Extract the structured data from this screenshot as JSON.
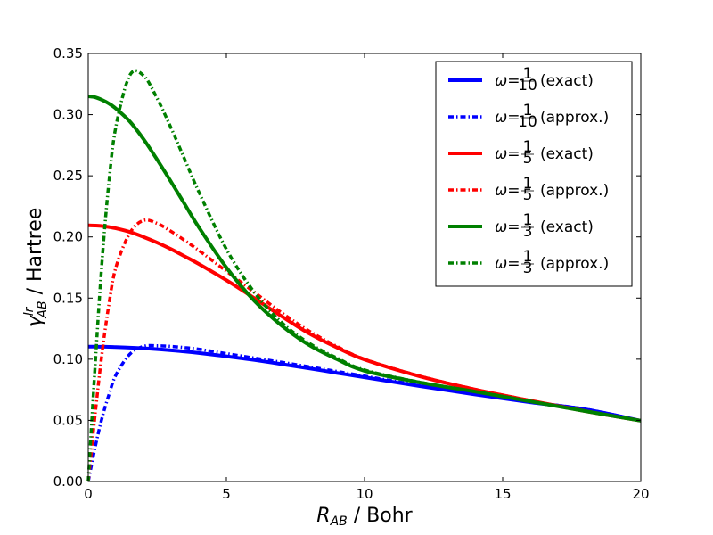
{
  "chart_data": {
    "type": "line",
    "title": "",
    "xlabel": "R_AB / Bohr",
    "ylabel": "γ^lr_AB / Hartree",
    "xlim": [
      0,
      20
    ],
    "ylim": [
      0,
      0.35
    ],
    "xticks": [
      0,
      5,
      10,
      15,
      20
    ],
    "xtick_labels": [
      "0",
      "5",
      "10",
      "15",
      "20"
    ],
    "yticks": [
      0,
      0.05,
      0.1,
      0.15,
      0.2,
      0.25,
      0.3,
      0.35
    ],
    "ytick_labels": [
      "0.00",
      "0.05",
      "0.10",
      "0.15",
      "0.20",
      "0.25",
      "0.30",
      "0.35"
    ],
    "grid": false,
    "legend_position": "top-right",
    "x": [
      0,
      0.25,
      0.5,
      0.75,
      1,
      1.5,
      2,
      2.5,
      3,
      3.5,
      4,
      5,
      6,
      7,
      8,
      9,
      10,
      12,
      14,
      16,
      18,
      20
    ],
    "series": [
      {
        "name": "ω=1/10 (exact)",
        "label_text": "(exact)",
        "omega": "1/10",
        "color": "#0000ff",
        "style": "solid",
        "values": [
          0.1103,
          0.1103,
          0.1102,
          0.1101,
          0.1099,
          0.1095,
          0.1089,
          0.1082,
          0.1073,
          0.1063,
          0.1051,
          0.1024,
          0.0994,
          0.096,
          0.0925,
          0.0888,
          0.0852,
          0.078,
          0.0712,
          0.0648,
          0.059,
          0.0497
        ]
      },
      {
        "name": "ω=1/10 (approx.)",
        "label_text": "(approx.)",
        "omega": "1/10",
        "color": "#0000ff",
        "style": "dashdot",
        "values": [
          0.0,
          0.028,
          0.052,
          0.071,
          0.087,
          0.104,
          0.1105,
          0.111,
          0.1105,
          0.1095,
          0.1082,
          0.1046,
          0.101,
          0.0975,
          0.0938,
          0.09,
          0.0862,
          0.0786,
          0.0716,
          0.065,
          0.0592,
          0.0497
        ]
      },
      {
        "name": "ω=1/5 (exact)",
        "label_text": "(exact)",
        "omega": "1/5",
        "color": "#ff0000",
        "style": "solid",
        "values": [
          0.2095,
          0.2093,
          0.2089,
          0.2081,
          0.207,
          0.2041,
          0.2,
          0.1953,
          0.19,
          0.184,
          0.1779,
          0.1646,
          0.1501,
          0.1351,
          0.121,
          0.1096,
          0.0997,
          0.086,
          0.0752,
          0.0661,
          0.0575,
          0.0497
        ]
      },
      {
        "name": "ω=1/5 (approx.)",
        "label_text": "(approx.)",
        "omega": "1/5",
        "color": "#ff0000",
        "style": "dashdot",
        "values": [
          0.0,
          0.055,
          0.105,
          0.145,
          0.175,
          0.203,
          0.2135,
          0.211,
          0.2045,
          0.197,
          0.189,
          0.172,
          0.155,
          0.138,
          0.123,
          0.1105,
          0.1,
          0.0862,
          0.0754,
          0.0662,
          0.0576,
          0.0497
        ]
      },
      {
        "name": "ω=1/3 (exact)",
        "label_text": "(exact)",
        "omega": "1/3",
        "color": "#008000",
        "style": "solid",
        "values": [
          0.315,
          0.3142,
          0.312,
          0.309,
          0.305,
          0.2945,
          0.28,
          0.263,
          0.245,
          0.2265,
          0.208,
          0.175,
          0.148,
          0.1275,
          0.1115,
          0.1,
          0.0905,
          0.081,
          0.0735,
          0.0655,
          0.0575,
          0.0497
        ]
      },
      {
        "name": "ω=1/3 (approx.)",
        "label_text": "(approx.)",
        "omega": "1/3",
        "color": "#008000",
        "style": "dashdot",
        "values": [
          0.0,
          0.095,
          0.18,
          0.245,
          0.29,
          0.332,
          0.332,
          0.313,
          0.289,
          0.263,
          0.237,
          0.19,
          0.155,
          0.13,
          0.113,
          0.101,
          0.0912,
          0.0812,
          0.0736,
          0.0656,
          0.0575,
          0.0497
        ]
      }
    ]
  }
}
